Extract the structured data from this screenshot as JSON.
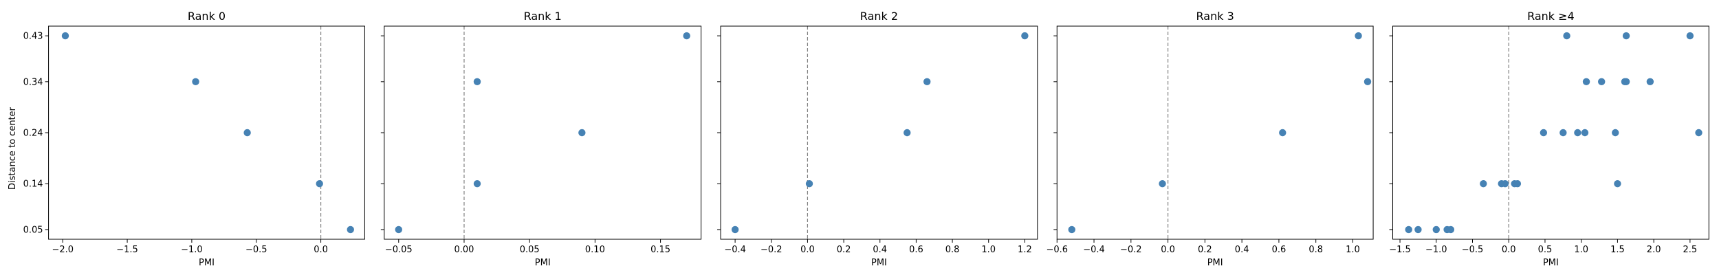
{
  "figure": {
    "ylabel": "Distance to center",
    "xlabel": "PMI",
    "point_color": "#4682b4",
    "refline_color": "#808080"
  },
  "chart_data": [
    {
      "type": "scatter",
      "title": "Rank 0",
      "xlabel": "PMI",
      "ylabel": "Distance to center",
      "xlim": [
        -2.11,
        0.34
      ],
      "ylim": [
        0.031,
        0.449
      ],
      "xticks": [
        -2.0,
        -1.5,
        -1.0,
        -0.5,
        0.0
      ],
      "xtick_labels": [
        "−2.0",
        "−1.5",
        "−1.0",
        "−0.5",
        "0.0"
      ],
      "yticks": [
        0.05,
        0.14,
        0.24,
        0.34,
        0.43
      ],
      "ytick_labels": [
        "0.05",
        "0.14",
        "0.24",
        "0.34",
        "0.43"
      ],
      "points": [
        {
          "x": -1.98,
          "y": 0.43
        },
        {
          "x": -0.97,
          "y": 0.34
        },
        {
          "x": -0.57,
          "y": 0.24
        },
        {
          "x": -0.01,
          "y": 0.14
        },
        {
          "x": 0.23,
          "y": 0.05
        }
      ],
      "vline_x": 0
    },
    {
      "type": "scatter",
      "title": "Rank 1",
      "xlabel": "PMI",
      "ylim": [
        0.031,
        0.449
      ],
      "xlim": [
        -0.061,
        0.181
      ],
      "xticks": [
        -0.05,
        0.0,
        0.05,
        0.1,
        0.15
      ],
      "xtick_labels": [
        "−0.05",
        "0.00",
        "0.05",
        "0.10",
        "0.15"
      ],
      "yticks": [
        0.05,
        0.14,
        0.24,
        0.34,
        0.43
      ],
      "points": [
        {
          "x": -0.05,
          "y": 0.05
        },
        {
          "x": 0.01,
          "y": 0.34
        },
        {
          "x": 0.01,
          "y": 0.14
        },
        {
          "x": 0.09,
          "y": 0.24
        },
        {
          "x": 0.17,
          "y": 0.43
        }
      ],
      "vline_x": 0
    },
    {
      "type": "scatter",
      "title": "Rank 2",
      "xlabel": "PMI",
      "ylim": [
        0.031,
        0.449
      ],
      "xlim": [
        -0.48,
        1.27
      ],
      "xticks": [
        -0.4,
        -0.2,
        0.0,
        0.2,
        0.4,
        0.6,
        0.8,
        1.0,
        1.2
      ],
      "xtick_labels": [
        "−0.4",
        "−0.2",
        "0.0",
        "0.2",
        "0.4",
        "0.6",
        "0.8",
        "1.0",
        "1.2"
      ],
      "yticks": [
        0.05,
        0.14,
        0.24,
        0.34,
        0.43
      ],
      "points": [
        {
          "x": -0.4,
          "y": 0.05
        },
        {
          "x": 0.01,
          "y": 0.14
        },
        {
          "x": 0.55,
          "y": 0.24
        },
        {
          "x": 0.66,
          "y": 0.34
        },
        {
          "x": 1.2,
          "y": 0.43
        }
      ],
      "vline_x": 0
    },
    {
      "type": "scatter",
      "title": "Rank 3",
      "xlabel": "PMI",
      "ylim": [
        0.031,
        0.449
      ],
      "xlim": [
        -0.6,
        1.11
      ],
      "xticks": [
        -0.6,
        -0.4,
        -0.2,
        0.0,
        0.2,
        0.4,
        0.6,
        0.8,
        1.0
      ],
      "xtick_labels": [
        "−0.6",
        "−0.4",
        "−0.2",
        "0.0",
        "0.2",
        "0.4",
        "0.6",
        "0.8",
        "1.0"
      ],
      "yticks": [
        0.05,
        0.14,
        0.24,
        0.34,
        0.43
      ],
      "points": [
        {
          "x": -0.52,
          "y": 0.05
        },
        {
          "x": -0.03,
          "y": 0.14
        },
        {
          "x": 0.62,
          "y": 0.24
        },
        {
          "x": 1.03,
          "y": 0.43
        },
        {
          "x": 1.08,
          "y": 0.34
        }
      ],
      "vline_x": 0
    },
    {
      "type": "scatter",
      "title": "Rank ≥4",
      "xlabel": "PMI",
      "ylim": [
        0.031,
        0.449
      ],
      "xlim": [
        -1.6,
        2.76
      ],
      "xticks": [
        -1.5,
        -1.0,
        -0.5,
        0.0,
        0.5,
        1.0,
        1.5,
        2.0,
        2.5
      ],
      "xtick_labels": [
        "−1.5",
        "−1.0",
        "−0.5",
        "0.0",
        "0.5",
        "1.0",
        "1.5",
        "2.0",
        "2.5"
      ],
      "yticks": [
        0.05,
        0.14,
        0.24,
        0.34,
        0.43
      ],
      "points": [
        {
          "x": -1.38,
          "y": 0.05
        },
        {
          "x": -1.25,
          "y": 0.05
        },
        {
          "x": -1.0,
          "y": 0.05
        },
        {
          "x": -0.85,
          "y": 0.05
        },
        {
          "x": -0.8,
          "y": 0.05
        },
        {
          "x": -0.35,
          "y": 0.14
        },
        {
          "x": -0.1,
          "y": 0.14
        },
        {
          "x": -0.05,
          "y": 0.14
        },
        {
          "x": 0.08,
          "y": 0.14
        },
        {
          "x": 0.12,
          "y": 0.14
        },
        {
          "x": 1.5,
          "y": 0.14
        },
        {
          "x": 0.48,
          "y": 0.24
        },
        {
          "x": 0.75,
          "y": 0.24
        },
        {
          "x": 0.95,
          "y": 0.24
        },
        {
          "x": 1.05,
          "y": 0.24
        },
        {
          "x": 1.47,
          "y": 0.24
        },
        {
          "x": 2.62,
          "y": 0.24
        },
        {
          "x": 1.07,
          "y": 0.34
        },
        {
          "x": 1.28,
          "y": 0.34
        },
        {
          "x": 1.6,
          "y": 0.34
        },
        {
          "x": 1.62,
          "y": 0.34
        },
        {
          "x": 1.95,
          "y": 0.34
        },
        {
          "x": 0.8,
          "y": 0.43
        },
        {
          "x": 1.62,
          "y": 0.43
        },
        {
          "x": 2.5,
          "y": 0.43
        }
      ],
      "vline_x": 0
    }
  ]
}
